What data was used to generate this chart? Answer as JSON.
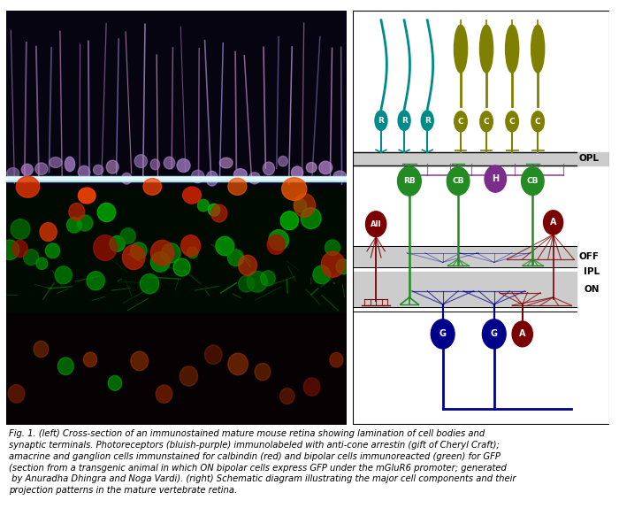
{
  "fig_width": 7.0,
  "fig_height": 6.0,
  "caption": "Fig. 1. (left) Cross-section of an immunostained mature mouse retina showing lamination of cell bodies and\nsynaptic terminals. Photoreceptors (bluish-purple) immunolabeled with anti-cone arrestin (gift of Cheryl Craft);\namacrine and ganglion cells immunstained for calbindin (red) and bipolar cells immunoreacted (green) for GFP\n(section from a transgenic animal in which ON bipolar cells express GFP under the mGluR6 promoter; generated\n by Anuradha Dhingra and Noga Vardi). (right) Schematic diagram illustrating the major cell components and their\nprojection patterns in the mature vertebrate retina.",
  "rod_color": "#008B8B",
  "cone_color": "#808000",
  "rb_color": "#228B22",
  "cb_color": "#228B22",
  "horizontal_color": "#7B2D8B",
  "amacrine_color": "#7B0000",
  "ganglion_color": "#00008B",
  "ganglion_a_color": "#7B0000",
  "opl_label": "OPL",
  "off_label": "OFF",
  "ipl_label": "IPL",
  "on_label": "ON",
  "background_color": "#ffffff",
  "diagram_bg": "#ffffff",
  "layer_bg": "#cccccc"
}
